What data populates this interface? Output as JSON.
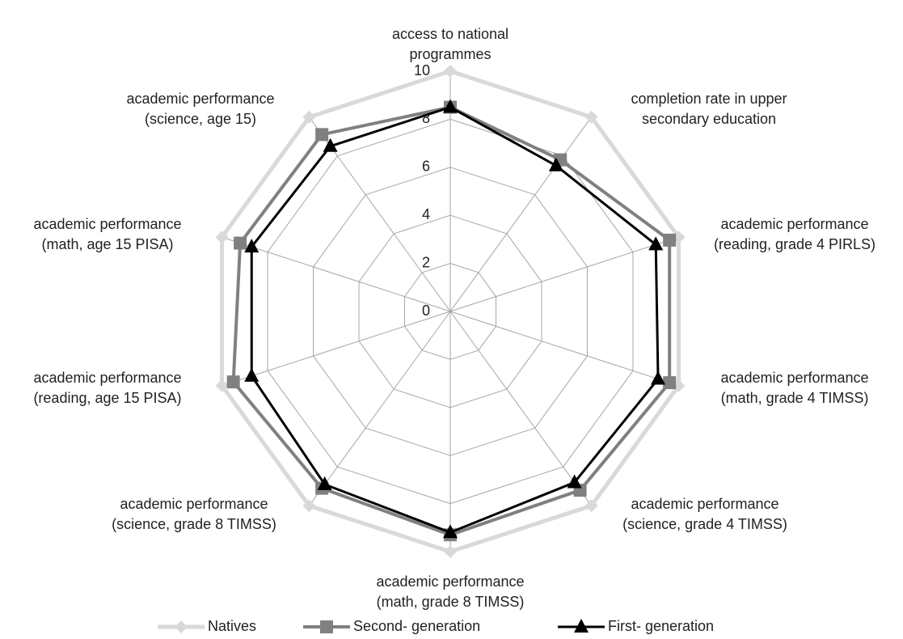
{
  "chart_data": {
    "type": "radar",
    "categories": [
      "access to national\nprogrammes",
      "completion rate in upper\nsecondary education",
      "academic performance\n(reading, grade 4 PIRLS)",
      "academic performance\n(math, grade 4 TIMSS)",
      "academic performance\n(science, grade 4 TIMSS)",
      "academic performance\n(math, grade 8 TIMSS)",
      "academic performance\n(science, grade 8 TIMSS)",
      "academic performance\n(reading, age 15 PISA)",
      "academic performance\n(math, age 15 PISA)",
      "academic performance\n(science, age 15)"
    ],
    "series": [
      {
        "name": "Natives",
        "color": "#d9d9d9",
        "marker": "diamond",
        "values": [
          10,
          10,
          10,
          10,
          10,
          10,
          10,
          10,
          10,
          10
        ]
      },
      {
        "name": "Second- generation",
        "color": "#808080",
        "marker": "square",
        "values": [
          8.5,
          7.8,
          9.6,
          9.6,
          9.2,
          9.3,
          9.1,
          9.5,
          9.2,
          9.1
        ]
      },
      {
        "name": "First- generation",
        "color": "#000000",
        "marker": "triangle",
        "values": [
          8.5,
          7.5,
          9.0,
          9.1,
          8.8,
          9.2,
          8.9,
          8.7,
          8.7,
          8.5
        ]
      }
    ],
    "ylim": [
      0,
      10
    ],
    "yticks": [
      0,
      2,
      4,
      6,
      8,
      10
    ],
    "grid": true,
    "legend": "bottom"
  }
}
